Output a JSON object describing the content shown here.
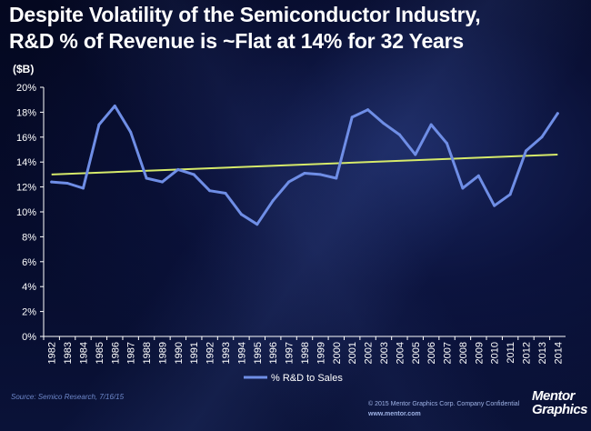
{
  "title_line1": "Despite Volatility of the Semiconductor Industry,",
  "title_line2": "R&D % of Revenue is ~Flat at 14% for 32 Years",
  "colors": {
    "series": "#6f8ee6",
    "trend": "#d6ea6a",
    "axis_text": "#ffffff",
    "axis_line": "#ffffff"
  },
  "chart_data": {
    "type": "line",
    "unit_label": "($B)",
    "x": [
      "1982",
      "1983",
      "1984",
      "1985",
      "1986",
      "1987",
      "1988",
      "1989",
      "1990",
      "1991",
      "1992",
      "1993",
      "1994",
      "1995",
      "1996",
      "1997",
      "1998",
      "1999",
      "2000",
      "2001",
      "2002",
      "2003",
      "2004",
      "2005",
      "2006",
      "2007",
      "2008",
      "2009",
      "2010",
      "2011",
      "2012",
      "2013",
      "2014"
    ],
    "series": [
      {
        "name": "% R&D to Sales",
        "values": [
          12.4,
          12.3,
          11.9,
          17.0,
          18.5,
          16.4,
          12.7,
          12.4,
          13.4,
          13.0,
          11.7,
          11.5,
          9.8,
          9.0,
          10.9,
          12.4,
          13.1,
          13.0,
          12.7,
          17.6,
          18.2,
          17.1,
          16.2,
          14.6,
          17.0,
          15.5,
          11.9,
          12.9,
          10.5,
          11.4,
          14.9,
          16.0,
          17.9
        ]
      }
    ],
    "trendline": {
      "start": 13.0,
      "end": 14.6
    },
    "y_ticks": [
      "0%",
      "2%",
      "4%",
      "6%",
      "8%",
      "10%",
      "12%",
      "14%",
      "16%",
      "18%",
      "20%"
    ],
    "ylim": [
      0,
      20
    ],
    "legend": {
      "label": "% R&D to Sales",
      "position": "bottom"
    },
    "grid": false
  },
  "footer": {
    "source": "Source: Semico Research, 7/16/15",
    "copyright": "© 2015 Mentor Graphics Corp.    Company Confidential",
    "website": "www.mentor.com",
    "logo_line1": "Mentor",
    "logo_line2": "Graphics"
  }
}
